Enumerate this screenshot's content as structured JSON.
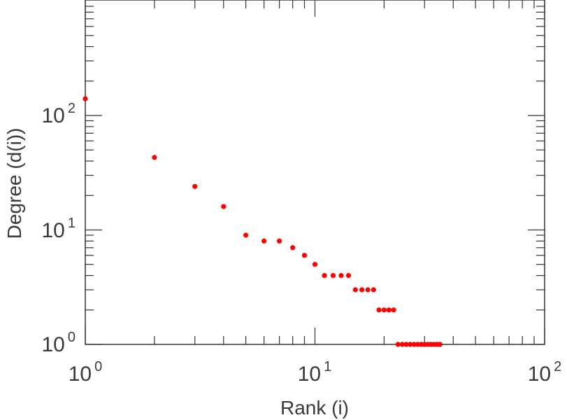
{
  "chart_data": {
    "type": "scatter",
    "title": "",
    "xlabel": "Rank (i)",
    "ylabel": "Degree (d(i))",
    "xscale": "log",
    "yscale": "log",
    "xlim": [
      1,
      100
    ],
    "ylim": [
      1,
      1000
    ],
    "grid": false,
    "marker_color": "#ff0000",
    "x_ticks": [
      {
        "base": "10",
        "exp": "0",
        "value": 1
      },
      {
        "base": "10",
        "exp": "1",
        "value": 10
      },
      {
        "base": "10",
        "exp": "2",
        "value": 100
      }
    ],
    "y_ticks": [
      {
        "base": "10",
        "exp": "0",
        "value": 1
      },
      {
        "base": "10",
        "exp": "1",
        "value": 10
      },
      {
        "base": "10",
        "exp": "2",
        "value": 100
      }
    ],
    "series": [
      {
        "name": "degree",
        "x": [
          1,
          2,
          3,
          4,
          5,
          6,
          7,
          8,
          9,
          10,
          11,
          12,
          13,
          14,
          15,
          16,
          17,
          18,
          19,
          20,
          21,
          22,
          23,
          24,
          25,
          26,
          27,
          28,
          29,
          30,
          31,
          32,
          33,
          34,
          35
        ],
        "y": [
          140,
          43,
          24,
          16,
          9,
          8,
          8,
          7,
          6,
          5,
          4,
          4,
          4,
          4,
          3,
          3,
          3,
          3,
          2,
          2,
          2,
          2,
          1,
          1,
          1,
          1,
          1,
          1,
          1,
          1,
          1,
          1,
          1,
          1,
          1
        ]
      }
    ]
  }
}
